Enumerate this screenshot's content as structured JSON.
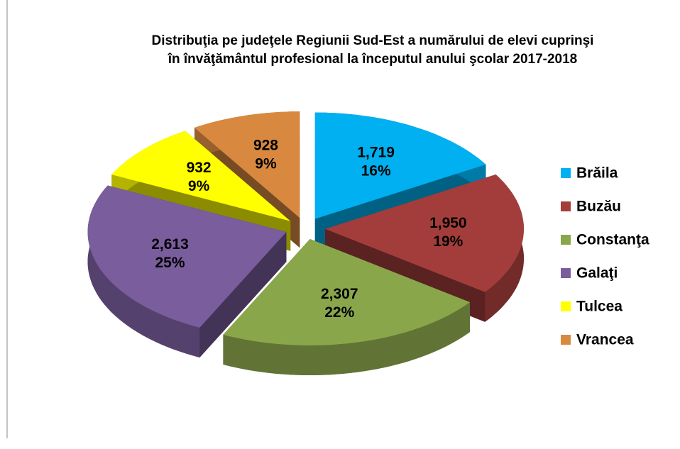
{
  "chart_data": {
    "type": "pie3d",
    "title": [
      "Distribuţia pe judeţele Regiunii Sud-Est a numărului de elevi cuprinşi",
      "în învăţământul profesional la începutul anului şcolar 2017-2018"
    ],
    "categories": [
      "Brăila",
      "Buzău",
      "Constanţa",
      "Galaţi",
      "Tulcea",
      "Vrancea"
    ],
    "values": [
      1719,
      1950,
      2307,
      2613,
      932,
      928
    ],
    "value_labels": [
      "1,719",
      "1,950",
      "2,307",
      "2,613",
      "932",
      "928"
    ],
    "percents": [
      16,
      19,
      22,
      25,
      9,
      9
    ],
    "percent_labels": [
      "16%",
      "19%",
      "22%",
      "25%",
      "9%",
      "9%"
    ],
    "colors": [
      "#00b0f0",
      "#a33d3b",
      "#8aa64b",
      "#7a5d9c",
      "#ffff00",
      "#d9893f"
    ],
    "legend": "right"
  }
}
